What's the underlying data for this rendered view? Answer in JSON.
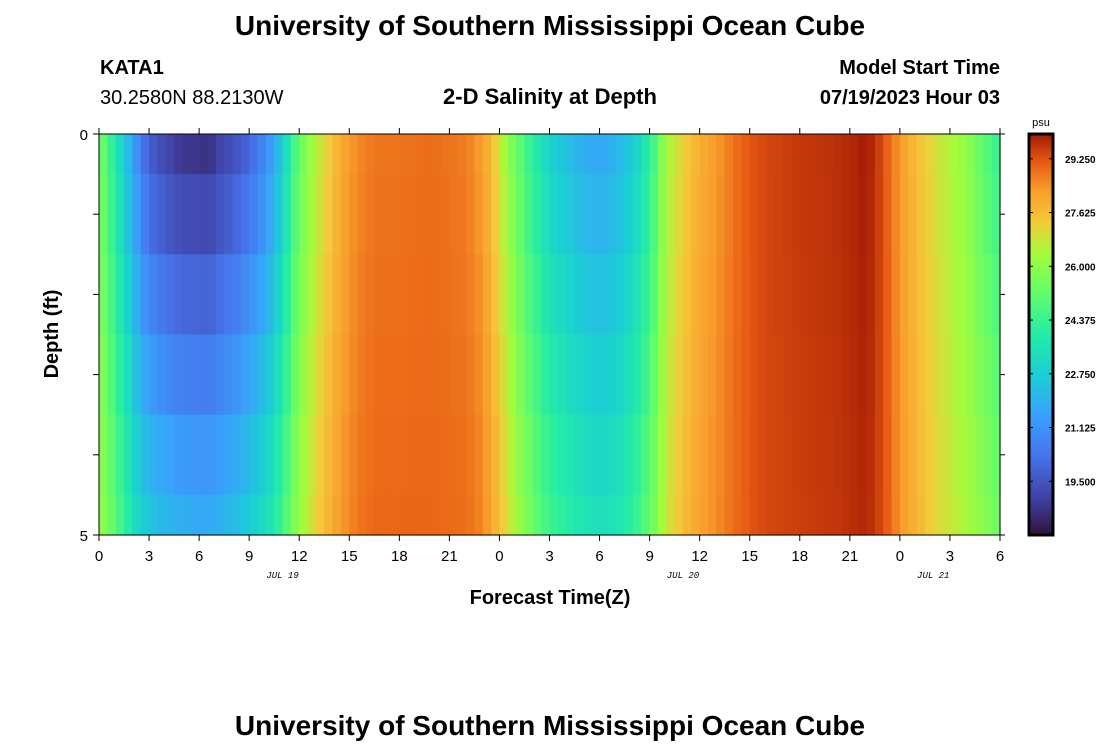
{
  "page": {
    "title": "University of Southern Mississippi Ocean Cube",
    "footer_title": "University of Southern Mississippi Ocean Cube",
    "station": "KATA1",
    "location": "30.2580N  88.2130W",
    "subtitle": "2-D Salinity at Depth",
    "model_start_label": "Model Start Time",
    "model_start_value": "07/19/2023 Hour 03"
  },
  "colors": {
    "background": "#ffffff",
    "axis": "#000000"
  },
  "chart_data": {
    "type": "heatmap",
    "title": "2-D Salinity at Depth",
    "xlabel": "Forecast Time(Z)",
    "ylabel": "Depth (ft)",
    "x_ticks": [
      "0",
      "3",
      "6",
      "9",
      "12",
      "15",
      "18",
      "21",
      "0",
      "3",
      "6",
      "9",
      "12",
      "15",
      "18",
      "21",
      "0",
      "3",
      "6"
    ],
    "x_tick_hours": [
      0,
      3,
      6,
      9,
      12,
      15,
      18,
      21,
      24,
      27,
      30,
      33,
      36,
      39,
      42,
      45,
      48,
      51,
      54
    ],
    "date_labels": [
      {
        "text": "JUL 19",
        "hour": 11
      },
      {
        "text": "JUL 20",
        "hour": 35
      },
      {
        "text": "JUL 21",
        "hour": 50
      }
    ],
    "xlim": [
      0,
      54
    ],
    "y_ticks": [
      "0",
      "5"
    ],
    "ylim": [
      0,
      5
    ],
    "depth_rows": [
      0.25,
      1.0,
      2.0,
      3.0,
      4.0,
      4.75
    ],
    "colorbar": {
      "unit": "psu",
      "min": 17.875,
      "max": 30.0,
      "tick_values": [
        19.5,
        21.125,
        22.75,
        24.375,
        26.0,
        27.625,
        29.25
      ],
      "tick_labels": [
        "19.500",
        "21.125",
        "22.750",
        "24.375",
        "26.000",
        "27.625",
        "29.250"
      ]
    },
    "time_keyframes": {
      "hour": [
        0,
        0.5,
        1,
        1.5,
        2,
        2.5,
        3,
        4,
        5,
        6,
        6.5,
        7,
        8,
        9,
        10,
        10.5,
        11,
        11.5,
        12,
        13,
        14,
        15,
        16,
        17,
        18,
        20,
        22,
        23,
        23.5,
        24,
        24.5,
        25,
        25.5,
        26,
        26.5,
        27,
        28,
        29,
        30,
        31,
        32,
        33,
        33.5,
        34,
        35,
        36,
        37,
        38,
        39,
        40,
        42,
        44,
        45,
        46,
        46.5,
        47,
        47.5,
        48,
        49,
        50,
        51,
        52,
        53,
        54
      ],
      "surface_salinity": [
        25.6,
        24.8,
        23.6,
        22.6,
        21.5,
        20.4,
        19.6,
        19.0,
        18.6,
        18.6,
        18.4,
        18.8,
        19.2,
        19.8,
        20.8,
        21.6,
        22.6,
        24.0,
        25.2,
        26.5,
        27.5,
        28.3,
        28.7,
        28.8,
        28.8,
        28.9,
        28.7,
        28.2,
        27.6,
        26.8,
        26.0,
        25.3,
        24.6,
        24.0,
        23.5,
        22.8,
        22.3,
        21.8,
        21.6,
        21.9,
        22.6,
        24.0,
        25.2,
        26.3,
        27.2,
        27.9,
        28.3,
        28.8,
        29.2,
        29.4,
        29.6,
        29.7,
        29.8,
        30.0,
        29.7,
        29.3,
        28.8,
        28.3,
        27.6,
        27.0,
        26.5,
        26.0,
        25.0,
        24.2
      ],
      "bottom_salinity": [
        26.2,
        25.6,
        25.0,
        24.4,
        23.6,
        23.0,
        22.6,
        22.2,
        22.0,
        21.9,
        21.8,
        22.0,
        22.3,
        22.8,
        23.4,
        23.9,
        24.6,
        25.4,
        26.2,
        27.2,
        28.0,
        28.6,
        28.9,
        29.0,
        29.0,
        29.0,
        28.9,
        28.6,
        28.1,
        27.6,
        27.0,
        26.4,
        25.9,
        25.4,
        24.9,
        24.5,
        24.1,
        23.7,
        23.4,
        23.6,
        24.2,
        25.2,
        26.0,
        26.8,
        27.6,
        28.2,
        28.5,
        28.9,
        29.2,
        29.4,
        29.5,
        29.6,
        29.7,
        29.8,
        29.6,
        29.3,
        28.9,
        28.4,
        27.8,
        27.2,
        26.8,
        26.4,
        25.9,
        25.4
      ]
    },
    "notes": "Values estimated from the color scale; fresher (low salinity) water near surface around hours 3-10 and 27-32, saline (>28 psu) around hours 15-24 and 40-48."
  }
}
